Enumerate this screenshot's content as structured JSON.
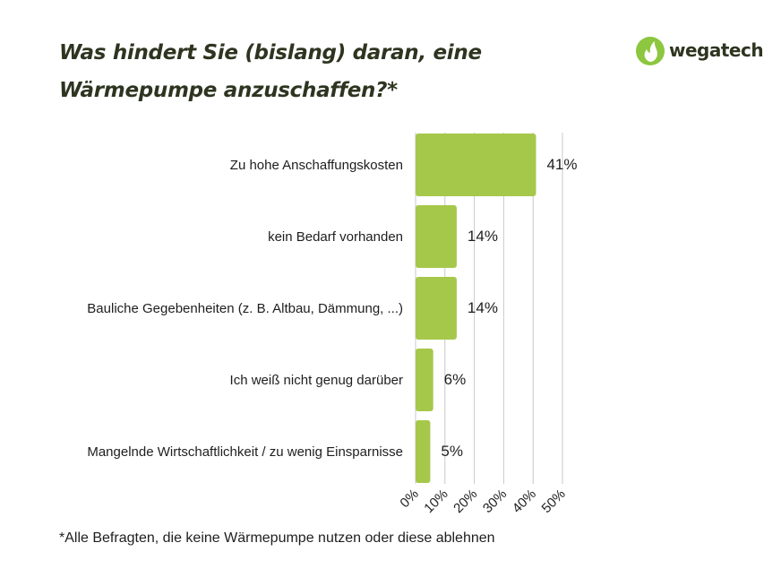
{
  "title_line1": "Was hindert Sie (bislang) daran, eine",
  "title_line2": "Wärmepumpe anzuschaffen?*",
  "brand": {
    "name": "wegatech",
    "icon": "flame-leaf-logo",
    "color": "#8dc63f"
  },
  "footnote": "*Alle Befragten, die keine Wärmepumpe nutzen oder diese ablehnen",
  "colors": {
    "bar": "#a6c84a",
    "grid": "#c8c8c8",
    "text": "#1e1e1e",
    "title": "#2d3520"
  },
  "chart_data": {
    "type": "bar",
    "orientation": "horizontal",
    "categories": [
      "Zu hohe Anschaffungskosten",
      "kein Bedarf vorhanden",
      "Bauliche Gegebenheiten (z. B. Altbau, Dämmung, ...)",
      "Ich weiß nicht genug darüber",
      "Mangelnde Wirtschaftlichkeit / zu wenig Einsparnisse"
    ],
    "values": [
      41,
      14,
      14,
      6,
      5
    ],
    "value_labels": [
      "41%",
      "14%",
      "14%",
      "6%",
      "5%"
    ],
    "xlim": [
      0,
      50
    ],
    "x_ticks": [
      0,
      10,
      20,
      30,
      40,
      50
    ],
    "x_tick_labels": [
      "0%",
      "10%",
      "20%",
      "30%",
      "40%",
      "50%"
    ],
    "grid": true,
    "legend": "none"
  }
}
